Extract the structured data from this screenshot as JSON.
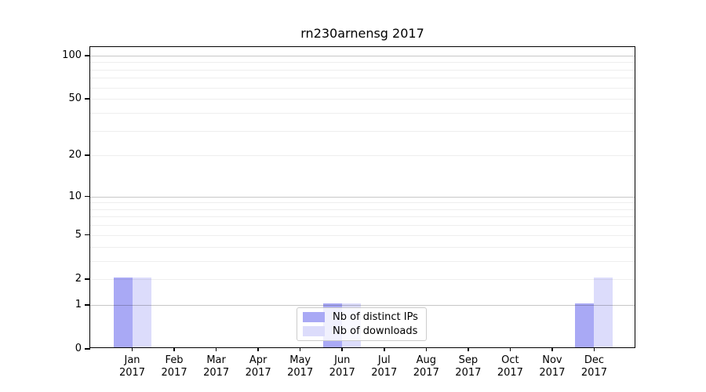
{
  "title": "rn230arnensg 2017",
  "chart_data": {
    "type": "bar",
    "title": "rn230arnensg 2017",
    "categories": [
      "Jan",
      "Feb",
      "Mar",
      "Apr",
      "May",
      "Jun",
      "Jul",
      "Aug",
      "Sep",
      "Oct",
      "Nov",
      "Dec"
    ],
    "year": "2017",
    "series": [
      {
        "name": "Nb of distinct IPs",
        "color": "#a9a9f5",
        "values": [
          2,
          0,
          0,
          0,
          0,
          1,
          0,
          0,
          0,
          0,
          0,
          1
        ]
      },
      {
        "name": "Nb of downloads",
        "color": "#dcdcfb",
        "values": [
          2,
          0,
          0,
          0,
          0,
          1,
          0,
          0,
          0,
          0,
          0,
          2
        ]
      }
    ],
    "xlabel": "",
    "ylabel": "",
    "yscale": "log1p",
    "ylim": [
      0,
      115
    ],
    "yticks": [
      0,
      1,
      2,
      5,
      10,
      20,
      50,
      100
    ],
    "major_grid_yticks": [
      1,
      10,
      100
    ],
    "minor_grid_yticks": [
      2,
      3,
      4,
      5,
      6,
      7,
      8,
      9,
      20,
      30,
      40,
      50,
      60,
      70,
      80,
      90
    ],
    "grid": true,
    "legend_position": "lower center"
  }
}
